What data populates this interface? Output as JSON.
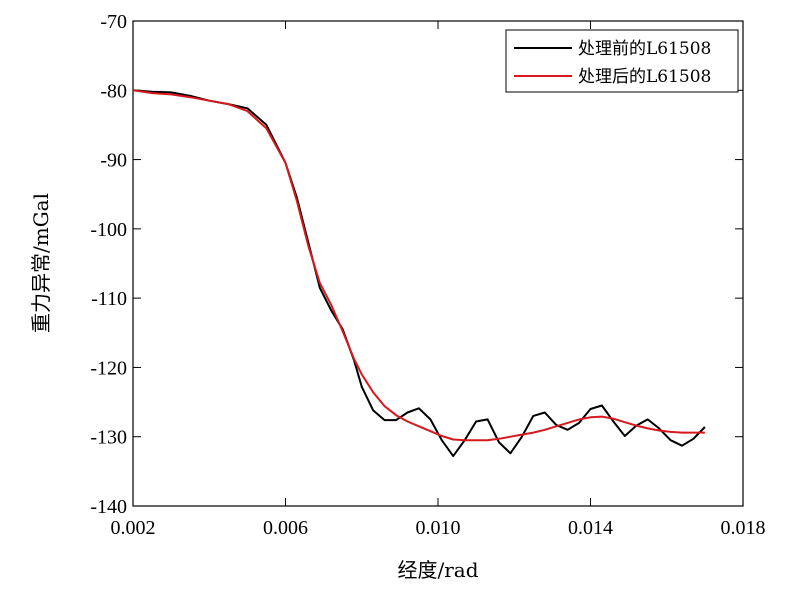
{
  "chart_data": {
    "type": "line",
    "title": "",
    "xlabel": "经度/rad",
    "ylabel": "重力异常/mGal",
    "xlim": [
      0.002,
      0.018
    ],
    "ylim": [
      -140,
      -70
    ],
    "xticks": [
      0.002,
      0.006,
      0.01,
      0.014,
      0.018
    ],
    "xtick_labels": [
      "0.002",
      "0.006",
      "0.010",
      "0.014",
      "0.018"
    ],
    "yticks": [
      -70,
      -80,
      -90,
      -100,
      -110,
      -120,
      -130,
      -140
    ],
    "ytick_labels": [
      "-70",
      "-80",
      "-90",
      "-100",
      "-110",
      "-120",
      "-130",
      "-140"
    ],
    "grid": false,
    "legend_position": "top-right",
    "series": [
      {
        "name": "处理前的L61508",
        "color": "#000000",
        "x": [
          0.002,
          0.0025,
          0.003,
          0.0035,
          0.004,
          0.0045,
          0.005,
          0.0055,
          0.006,
          0.0063,
          0.0066,
          0.0069,
          0.0072,
          0.0075,
          0.0078,
          0.008,
          0.0083,
          0.0086,
          0.0089,
          0.0092,
          0.0095,
          0.0098,
          0.0101,
          0.0104,
          0.0107,
          0.011,
          0.0113,
          0.0116,
          0.0119,
          0.0122,
          0.0125,
          0.0128,
          0.0131,
          0.0134,
          0.0137,
          0.014,
          0.0143,
          0.0146,
          0.0149,
          0.0152,
          0.0155,
          0.0158,
          0.0161,
          0.0164,
          0.0167,
          0.017
        ],
        "values": [
          -80.0,
          -80.2,
          -80.3,
          -80.8,
          -81.5,
          -82.0,
          -82.6,
          -85.0,
          -90.5,
          -95.5,
          -102.0,
          -108.5,
          -111.8,
          -114.5,
          -119.0,
          -122.8,
          -126.2,
          -127.6,
          -127.6,
          -126.5,
          -125.9,
          -127.5,
          -130.5,
          -132.8,
          -130.5,
          -127.8,
          -127.5,
          -130.8,
          -132.4,
          -130.0,
          -127.0,
          -126.5,
          -128.3,
          -129.0,
          -128.0,
          -126.0,
          -125.5,
          -127.8,
          -129.9,
          -128.4,
          -127.5,
          -128.8,
          -130.5,
          -131.3,
          -130.3,
          -128.6
        ]
      },
      {
        "name": "处理后的L61508",
        "color": "#d7191c",
        "x": [
          0.002,
          0.0025,
          0.003,
          0.0035,
          0.004,
          0.0045,
          0.005,
          0.0055,
          0.006,
          0.0063,
          0.0066,
          0.0069,
          0.0072,
          0.0075,
          0.0078,
          0.008,
          0.0083,
          0.0086,
          0.0089,
          0.0092,
          0.0095,
          0.0098,
          0.0101,
          0.0104,
          0.0107,
          0.011,
          0.0113,
          0.0116,
          0.0119,
          0.0122,
          0.0125,
          0.0128,
          0.0131,
          0.0134,
          0.0137,
          0.014,
          0.0143,
          0.0146,
          0.0149,
          0.0152,
          0.0155,
          0.0158,
          0.0161,
          0.0164,
          0.0167,
          0.017
        ],
        "values": [
          -80.0,
          -80.4,
          -80.6,
          -81.0,
          -81.5,
          -82.0,
          -83.0,
          -85.5,
          -90.5,
          -96.0,
          -102.5,
          -107.8,
          -111.0,
          -114.8,
          -118.8,
          -121.0,
          -123.6,
          -125.6,
          -126.9,
          -127.8,
          -128.5,
          -129.2,
          -129.9,
          -130.4,
          -130.5,
          -130.5,
          -130.5,
          -130.3,
          -130.0,
          -129.7,
          -129.4,
          -129.0,
          -128.5,
          -128.0,
          -127.5,
          -127.2,
          -127.1,
          -127.4,
          -127.9,
          -128.4,
          -128.8,
          -129.1,
          -129.3,
          -129.4,
          -129.4,
          -129.4
        ]
      }
    ]
  }
}
